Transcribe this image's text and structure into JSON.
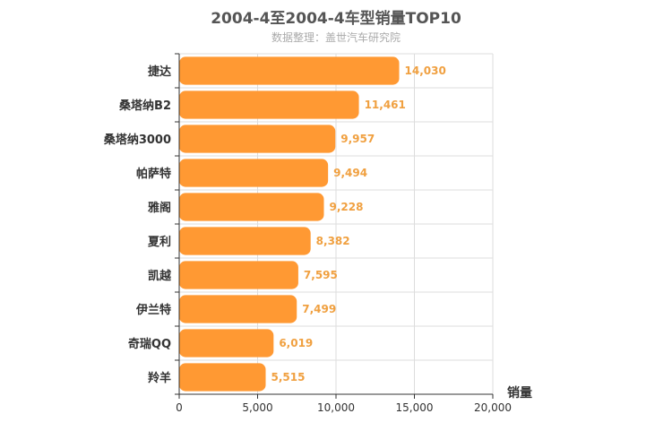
{
  "chart_data": {
    "type": "bar",
    "orientation": "horizontal",
    "title": "2004-4至2004-4车型销量TOP10",
    "subtitle": "数据整理：盖世汽车研究院",
    "xlabel": "销量",
    "ylabel": "",
    "categories": [
      "捷达",
      "桑塔纳B2",
      "桑塔纳3000",
      "帕萨特",
      "雅阁",
      "夏利",
      "凯越",
      "伊兰特",
      "奇瑞QQ",
      "羚羊"
    ],
    "values": [
      14030,
      11461,
      9957,
      9494,
      9228,
      8382,
      7595,
      7499,
      6019,
      5515
    ],
    "value_labels": [
      "14,030",
      "11,461",
      "9,957",
      "9,494",
      "9,228",
      "8,382",
      "7,595",
      "7,499",
      "6,019",
      "5,515"
    ],
    "xlim": [
      0,
      20000
    ],
    "xticks": [
      0,
      5000,
      10000,
      15000,
      20000
    ],
    "xtick_labels": [
      "0",
      "5,000",
      "10,000",
      "15,000",
      "20,000"
    ],
    "grid": true,
    "bar_color": "#ff9933",
    "label_color": "#f0a040"
  }
}
